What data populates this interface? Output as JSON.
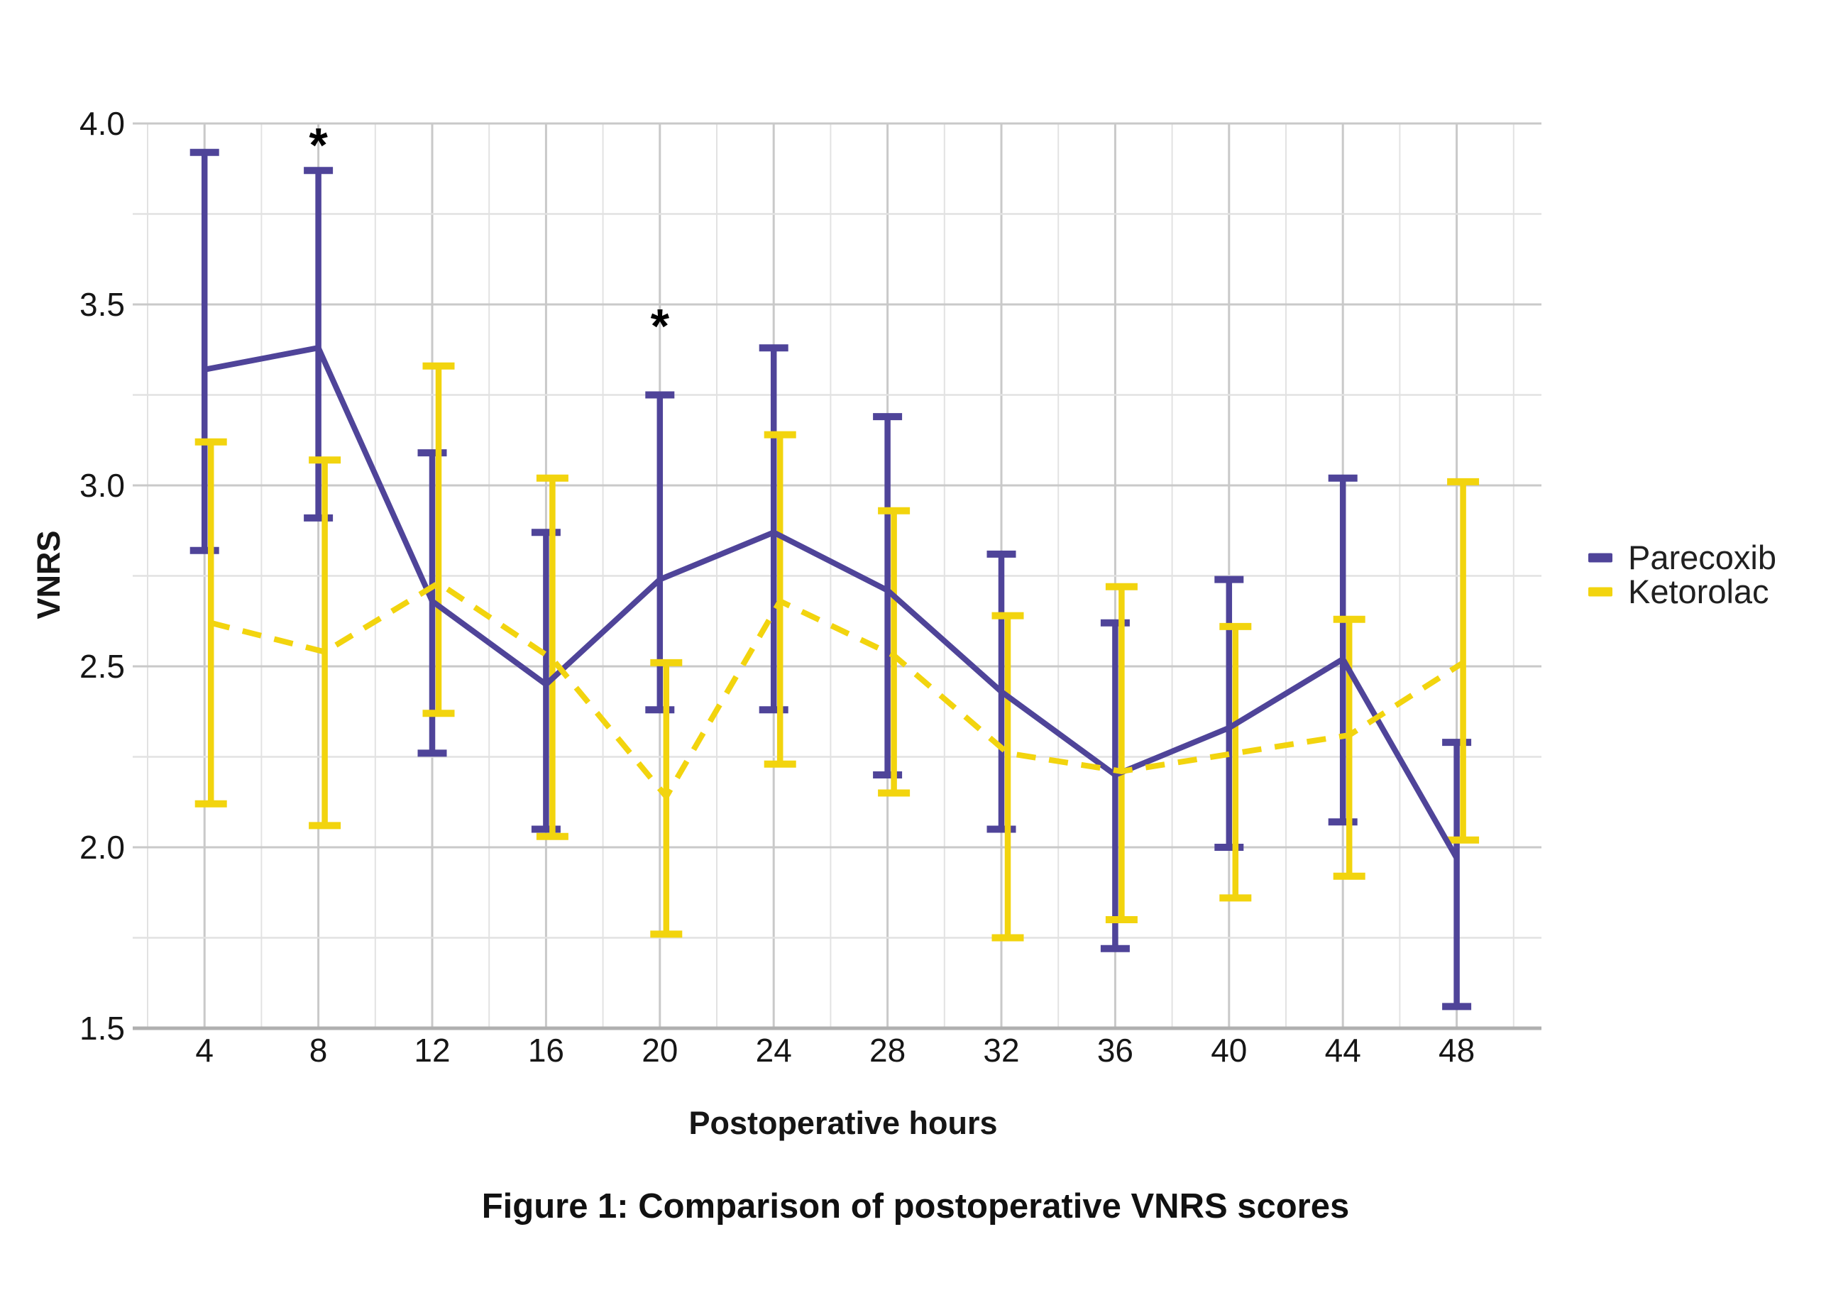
{
  "figure": {
    "title": "Figure 1: Comparison of postoperative VNRS scores",
    "x_axis_label": "Postoperative hours",
    "y_axis_label": "VNRS",
    "background_color": "#ffffff",
    "text_color": "#161616"
  },
  "chart_data": {
    "type": "line",
    "title": "Figure 1: Comparison of postoperative VNRS scores",
    "xlabel": "Postoperative hours",
    "ylabel": "VNRS",
    "x": [
      4,
      8,
      12,
      16,
      20,
      24,
      28,
      32,
      36,
      40,
      44,
      48
    ],
    "x_tick_labels": [
      "4",
      "8",
      "12",
      "16",
      "20",
      "24",
      "28",
      "32",
      "36",
      "40",
      "44",
      "48"
    ],
    "y_tick_labels": [
      "1.5",
      "2.0",
      "2.5",
      "3.0",
      "3.5",
      "4.0"
    ],
    "y_ticks": [
      1.5,
      2.0,
      2.5,
      3.0,
      3.5,
      4.0
    ],
    "ylim": [
      1.5,
      4.0
    ],
    "xlim": [
      2,
      51
    ],
    "grid": {
      "on": true,
      "x_step_hours": 2,
      "y_minor_step": 0.25,
      "major_color": "#c9c9c9",
      "minor_color": "#e2e2e2",
      "baseline_color": "#b0b0b0"
    },
    "legend_position": "right",
    "error_bars": true,
    "series": [
      {
        "name": "Parecoxib",
        "color": "#4f4499",
        "line_style": "solid",
        "means": [
          3.32,
          3.38,
          2.68,
          2.45,
          2.74,
          2.87,
          2.71,
          2.43,
          2.2,
          2.33,
          2.52,
          1.97
        ],
        "upper": [
          3.92,
          3.87,
          3.09,
          2.87,
          3.25,
          3.38,
          3.19,
          2.81,
          2.62,
          2.74,
          3.02,
          2.29
        ],
        "lower": [
          2.82,
          2.91,
          2.26,
          2.05,
          2.38,
          2.38,
          2.2,
          2.05,
          1.72,
          2.0,
          2.07,
          1.56
        ]
      },
      {
        "name": "Ketorolac",
        "color": "#f2d40e",
        "line_style": "dashed",
        "means": [
          2.62,
          2.54,
          2.73,
          2.52,
          2.14,
          2.68,
          2.53,
          2.26,
          2.21,
          2.26,
          2.31,
          2.51
        ],
        "upper": [
          3.12,
          3.07,
          3.33,
          3.02,
          2.51,
          3.14,
          2.93,
          2.64,
          2.72,
          2.61,
          2.63,
          3.01
        ],
        "lower": [
          2.12,
          2.06,
          2.37,
          2.03,
          1.76,
          2.23,
          2.15,
          1.75,
          1.8,
          1.86,
          1.92,
          2.02
        ]
      }
    ],
    "annotations": [
      {
        "label": "*",
        "x": 8,
        "y": 3.96
      },
      {
        "label": "*",
        "x": 20,
        "y": 3.46
      }
    ]
  }
}
